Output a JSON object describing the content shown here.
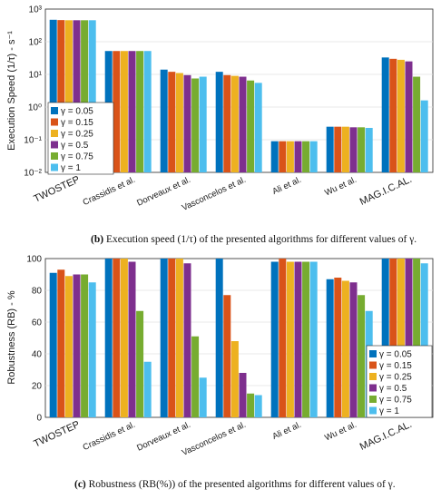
{
  "chart_data": [
    {
      "type": "bar",
      "caption_label": "(b)",
      "caption_text": "Execution speed (1/τ) of the presented algorithms for different values of γ.",
      "ylabel": "Execution Speed (1/τ) - s⁻¹",
      "yscale": "log",
      "ylim": [
        0.01,
        1000
      ],
      "yticks": [
        "10⁻²",
        "10⁻¹",
        "10⁰",
        "10¹",
        "10²",
        "10³"
      ],
      "grid": true,
      "legend_position": "left",
      "categories": [
        "TWOSTEP",
        "Crassidis et al.",
        "Dorveaux et al.",
        "Vasconcelos et al.",
        "Ali et al.",
        "Wu et al.",
        "MAG.I.C.AL."
      ],
      "series": [
        {
          "name": "γ = 0.05",
          "values": [
            470,
            52,
            14,
            12,
            0.09,
            0.25,
            33
          ]
        },
        {
          "name": "γ = 0.15",
          "values": [
            460,
            52,
            12,
            9.5,
            0.09,
            0.25,
            30
          ]
        },
        {
          "name": "γ = 0.25",
          "values": [
            455,
            52,
            11,
            9,
            0.09,
            0.25,
            28
          ]
        },
        {
          "name": "γ = 0.5",
          "values": [
            455,
            52,
            9.5,
            8.5,
            0.09,
            0.24,
            25
          ]
        },
        {
          "name": "γ = 0.75",
          "values": [
            455,
            52,
            7.5,
            6.5,
            0.09,
            0.24,
            8.5
          ]
        },
        {
          "name": "γ = 1",
          "values": [
            455,
            52,
            8.5,
            5.5,
            0.09,
            0.23,
            1.6
          ]
        }
      ]
    },
    {
      "type": "bar",
      "caption_label": "(c)",
      "caption_text": "Robustness (RB(%)) of the presented algorithms for different values of γ.",
      "ylabel": "Robustness (RB) - %",
      "yscale": "linear",
      "ylim": [
        0,
        100
      ],
      "yticks": [
        "0",
        "20",
        "40",
        "60",
        "80",
        "100"
      ],
      "grid": true,
      "legend_position": "right",
      "categories": [
        "TWOSTEP",
        "Crassidis et al.",
        "Dorveaux et al.",
        "Vasconcelos et al.",
        "Ali et al.",
        "Wu et al.",
        "MAG.I.C.AL."
      ],
      "series": [
        {
          "name": "γ = 0.05",
          "values": [
            91,
            100,
            100,
            100,
            98,
            87,
            100
          ]
        },
        {
          "name": "γ = 0.15",
          "values": [
            93,
            100,
            100,
            77,
            100,
            88,
            100
          ]
        },
        {
          "name": "γ = 0.25",
          "values": [
            89,
            100,
            100,
            48,
            98,
            86,
            100
          ]
        },
        {
          "name": "γ = 0.5",
          "values": [
            90,
            98,
            97,
            28,
            98,
            85,
            100
          ]
        },
        {
          "name": "γ = 0.75",
          "values": [
            90,
            67,
            51,
            15,
            98,
            77,
            100
          ]
        },
        {
          "name": "γ = 1",
          "values": [
            85,
            35,
            25,
            14,
            98,
            67,
            97
          ]
        }
      ]
    }
  ],
  "colors": [
    "#0072BD",
    "#D95319",
    "#EDB120",
    "#7E2F8E",
    "#77AC30",
    "#4DBEEE"
  ]
}
